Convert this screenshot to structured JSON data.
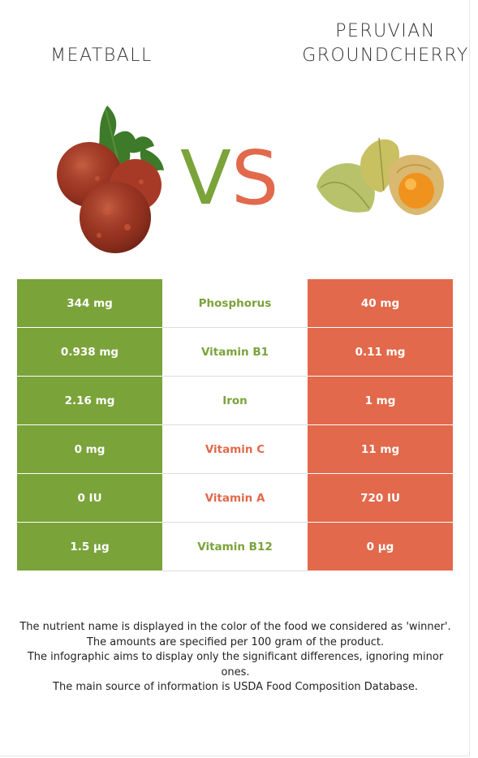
{
  "left_food": {
    "name": "MEATBALL",
    "color": "#7aa33a",
    "image_icon": "meatball-image"
  },
  "right_food": {
    "name_line1": "PERUVIAN",
    "name_line2": "GROUNDCHERRY",
    "color": "#e2694b",
    "image_icon": "groundcherry-image"
  },
  "vs": {
    "v": "V",
    "s": "S"
  },
  "rows": [
    {
      "left": "344 mg",
      "nutrient": "Phosphorus",
      "right": "40 mg",
      "winner": "left"
    },
    {
      "left": "0.938 mg",
      "nutrient": "Vitamin B1",
      "right": "0.11 mg",
      "winner": "left"
    },
    {
      "left": "2.16 mg",
      "nutrient": "Iron",
      "right": "1 mg",
      "winner": "left"
    },
    {
      "left": "0 mg",
      "nutrient": "Vitamin C",
      "right": "11 mg",
      "winner": "right"
    },
    {
      "left": "0 IU",
      "nutrient": "Vitamin A",
      "right": "720 IU",
      "winner": "right"
    },
    {
      "left": "1.5 µg",
      "nutrient": "Vitamin B12",
      "right": "0 µg",
      "winner": "left"
    }
  ],
  "footnotes": [
    "The nutrient name is displayed in the color of the food we considered as 'winner'.",
    "The amounts are specified per 100 gram of the product.",
    "The infographic aims to display only the significant differences, ignoring minor ones.",
    "The main source of information is USDA Food Composition Database."
  ]
}
